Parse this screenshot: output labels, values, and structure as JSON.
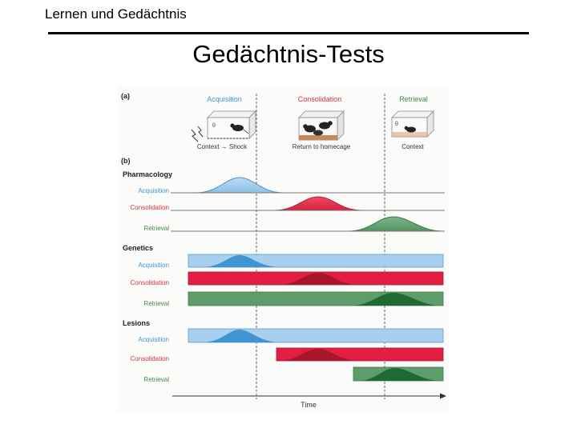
{
  "header": {
    "title": "Lernen und Gedächtnis"
  },
  "slide": {
    "title": "Gedächtnis-Tests"
  },
  "figure": {
    "panel_a": {
      "letter": "(a)",
      "phases": [
        {
          "label": "Acquisition",
          "color": "#3f95d2",
          "caption": "Context → Shock"
        },
        {
          "label": "Consolidation",
          "color": "#d23148",
          "caption": "Return to homecage"
        },
        {
          "label": "Retrieval",
          "color": "#3e8a4d",
          "caption": "Context"
        }
      ]
    },
    "panel_b": {
      "letter": "(b)",
      "groups": [
        {
          "title": "Pharmacology",
          "rows": [
            "Acquisition",
            "Consolidation",
            "Retrieval"
          ]
        },
        {
          "title": "Genetics",
          "rows": [
            "Acquisition",
            "Consolidation",
            "Retrieval"
          ]
        },
        {
          "title": "Lesions",
          "rows": [
            "Acquisition",
            "Consolidation",
            "Retrieval"
          ]
        }
      ],
      "time_label": "Time"
    },
    "colors": {
      "acquisition": "#3f95d2",
      "consolidation": "#d23148",
      "retrieval": "#3e8a4d"
    }
  }
}
